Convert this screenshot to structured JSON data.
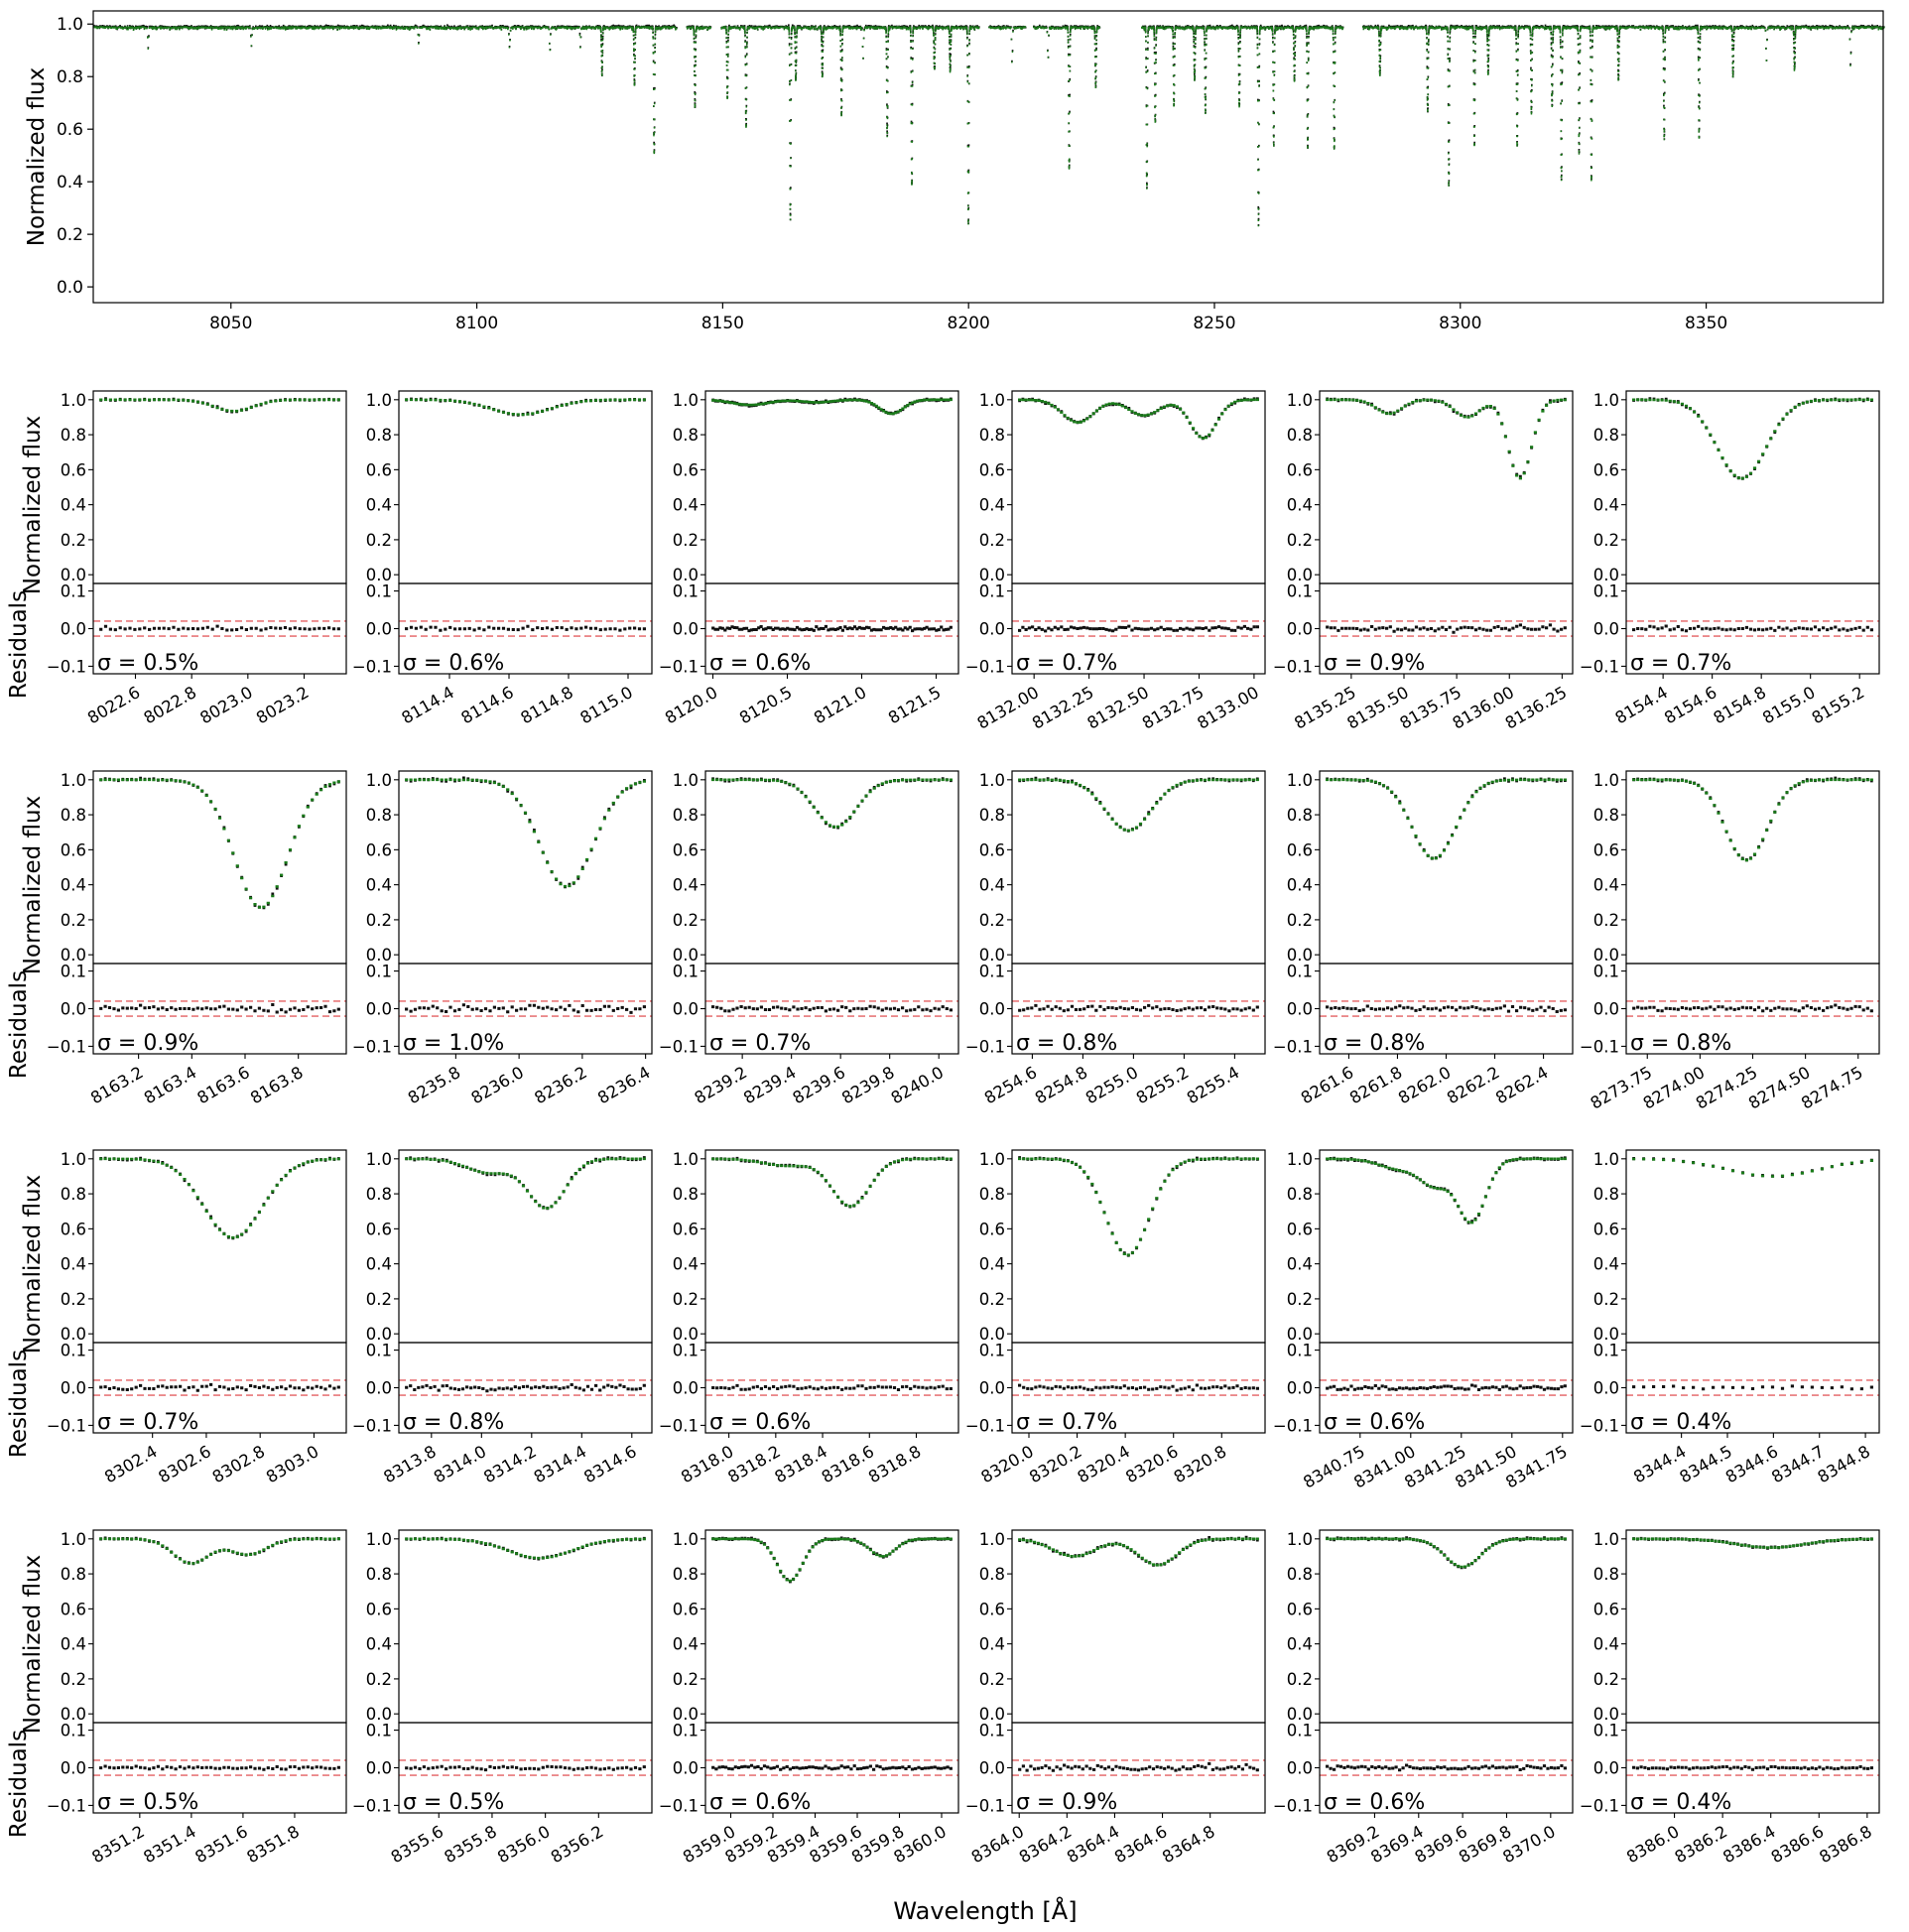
{
  "figure": {
    "xlabel": "Wavelength [Å]"
  },
  "chart_data": {
    "type": "scatter",
    "overview": {
      "ylabel": "Normalized flux",
      "xlim": [
        8022,
        8386
      ],
      "ylim": [
        -0.06,
        1.05
      ],
      "xticks": [
        8050,
        8100,
        8150,
        8200,
        8250,
        8300,
        8350
      ],
      "yticks": [
        0.0,
        0.2,
        0.4,
        0.6,
        0.8,
        1.0
      ],
      "gaps": [
        [
          8140.5,
          8142.5
        ],
        [
          8147.5,
          8149.5
        ],
        [
          8202,
          8204
        ],
        [
          8211.5,
          8213.0
        ],
        [
          8226.5,
          8235.0
        ],
        [
          8276.0,
          8280.0
        ]
      ],
      "lines": [
        [
          8135.9,
          0.48
        ],
        [
          8163.6,
          0.73
        ],
        [
          8236.1,
          0.61
        ],
        [
          8258.8,
          0.75
        ],
        [
          8188.3,
          0.6
        ],
        [
          8199.8,
          0.75
        ],
        [
          8220.3,
          0.54
        ],
        [
          8297.5,
          0.6
        ],
        [
          8320.4,
          0.58
        ],
        [
          8326.5,
          0.58
        ],
        [
          8324.0,
          0.48
        ],
        [
          8293.2,
          0.32
        ],
        [
          8311.4,
          0.45
        ],
        [
          8348.4,
          0.42
        ],
        [
          8183.3,
          0.41
        ],
        [
          8268.8,
          0.46
        ],
        [
          8237.8,
          0.36
        ],
        [
          8174.0,
          0.33
        ],
        [
          8248.0,
          0.32
        ],
        [
          8154.6,
          0.38
        ],
        [
          8125.3,
          0.18
        ],
        [
          8131.9,
          0.22
        ],
        [
          8144.2,
          0.3
        ],
        [
          8164.7,
          0.2
        ],
        [
          8196.1,
          0.17
        ],
        [
          8208.7,
          0.14
        ],
        [
          8225.7,
          0.23
        ],
        [
          8241.6,
          0.3
        ],
        [
          8245.8,
          0.2
        ],
        [
          8254.9,
          0.3
        ],
        [
          8261.9,
          0.45
        ],
        [
          8266.1,
          0.2
        ],
        [
          8274.2,
          0.46
        ],
        [
          8283.5,
          0.18
        ],
        [
          8302.7,
          0.45
        ],
        [
          8305.5,
          0.18
        ],
        [
          8314.3,
          0.33
        ],
        [
          8318.5,
          0.3
        ],
        [
          8332.0,
          0.2
        ],
        [
          8341.3,
          0.42
        ],
        [
          8355.3,
          0.18
        ],
        [
          8362.1,
          0.13
        ],
        [
          8367.8,
          0.16
        ],
        [
          8379.2,
          0.15
        ],
        [
          8033.0,
          0.08
        ],
        [
          8054.0,
          0.07
        ],
        [
          8088.0,
          0.06
        ],
        [
          8106.5,
          0.08
        ],
        [
          8114.7,
          0.09
        ],
        [
          8120.9,
          0.07
        ],
        [
          8150.8,
          0.27
        ],
        [
          8170.1,
          0.19
        ],
        [
          8178.4,
          0.12
        ],
        [
          8192.9,
          0.16
        ],
        [
          8216.0,
          0.12
        ],
        [
          8229.0,
          0.12
        ]
      ]
    },
    "panels": [
      {
        "xlim": [
          8022.45,
          8023.35
        ],
        "xticks": [
          "8022.6",
          "8022.8",
          "8023.0",
          "8023.2"
        ],
        "lines": [
          [
            8022.95,
            0.065,
            0.07
          ]
        ],
        "sigma": "σ = 0.5%",
        "sigma_value": 0.5,
        "n": 50
      },
      {
        "xlim": [
          8114.23,
          8115.08
        ],
        "xticks": [
          "8114.4",
          "8114.6",
          "8114.8",
          "8115.0"
        ],
        "lines": [
          [
            8114.64,
            0.085,
            0.1
          ]
        ],
        "sigma": "σ = 0.6%",
        "sigma_value": 0.6,
        "n": 50
      },
      {
        "xlim": [
          8119.95,
          8121.65
        ],
        "xticks": [
          "8120.0",
          "8120.5",
          "8121.0",
          "8121.5"
        ],
        "lines": [
          [
            8120.25,
            0.03,
            0.12
          ],
          [
            8121.2,
            0.08,
            0.08
          ],
          [
            8120.7,
            0.015,
            0.1
          ]
        ],
        "sigma": "σ = 0.6%",
        "sigma_value": 0.6,
        "n": 100
      },
      {
        "xlim": [
          8131.9,
          8133.05
        ],
        "xticks": [
          "8132.00",
          "8132.25",
          "8132.50",
          "8132.75",
          "8133.00"
        ],
        "lines": [
          [
            8132.2,
            0.13,
            0.07
          ],
          [
            8132.5,
            0.09,
            0.07
          ],
          [
            8132.77,
            0.22,
            0.06
          ]
        ],
        "sigma": "σ = 0.7%",
        "sigma_value": 0.7,
        "n": 75
      },
      {
        "xlim": [
          8135.1,
          8136.3
        ],
        "xticks": [
          "8135.25",
          "8135.50",
          "8135.75",
          "8136.00",
          "8136.25"
        ],
        "lines": [
          [
            8135.43,
            0.08,
            0.06
          ],
          [
            8135.8,
            0.1,
            0.06
          ],
          [
            8136.05,
            0.45,
            0.055
          ]
        ],
        "sigma": "σ = 0.9%",
        "sigma_value": 0.9,
        "n": 65
      },
      {
        "xlim": [
          8154.25,
          8155.28
        ],
        "xticks": [
          "8154.4",
          "8154.6",
          "8154.8",
          "8155.0",
          "8155.2"
        ],
        "lines": [
          [
            8154.72,
            0.45,
            0.1
          ]
        ],
        "sigma": "σ = 0.7%",
        "sigma_value": 0.7,
        "n": 60
      },
      {
        "xlim": [
          8163.03,
          8163.98
        ],
        "xticks": [
          "8163.2",
          "8163.4",
          "8163.6",
          "8163.8"
        ],
        "lines": [
          [
            8163.66,
            0.73,
            0.1
          ]
        ],
        "sigma": "σ = 0.9%",
        "sigma_value": 0.9,
        "n": 55
      },
      {
        "xlim": [
          8235.62,
          8236.42
        ],
        "xticks": [
          "8235.8",
          "8236.0",
          "8236.2",
          "8236.4"
        ],
        "lines": [
          [
            8236.15,
            0.61,
            0.085
          ]
        ],
        "sigma": "σ = 1.0%",
        "sigma_value": 1.0,
        "n": 55
      },
      {
        "xlim": [
          8239.05,
          8240.08
        ],
        "xticks": [
          "8239.2",
          "8239.4",
          "8239.6",
          "8239.8",
          "8240.0"
        ],
        "lines": [
          [
            8239.58,
            0.27,
            0.085
          ]
        ],
        "sigma": "σ = 0.7%",
        "sigma_value": 0.7,
        "n": 60
      },
      {
        "xlim": [
          8254.52,
          8255.52
        ],
        "xticks": [
          "8254.6",
          "8254.8",
          "8255.0",
          "8255.2",
          "8255.4"
        ],
        "lines": [
          [
            8254.98,
            0.29,
            0.09
          ]
        ],
        "sigma": "σ = 0.8%",
        "sigma_value": 0.8,
        "n": 60
      },
      {
        "xlim": [
          8261.48,
          8262.52
        ],
        "xticks": [
          "8261.6",
          "8261.8",
          "8262.0",
          "8262.2",
          "8262.4"
        ],
        "lines": [
          [
            8261.95,
            0.45,
            0.09
          ]
        ],
        "sigma": "σ = 0.8%",
        "sigma_value": 0.8,
        "n": 60
      },
      {
        "xlim": [
          8273.65,
          8274.85
        ],
        "xticks": [
          "8273.75",
          "8274.00",
          "8274.25",
          "8274.50",
          "8274.75"
        ],
        "lines": [
          [
            8274.22,
            0.46,
            0.1
          ]
        ],
        "sigma": "σ = 0.8%",
        "sigma_value": 0.8,
        "n": 60
      },
      {
        "xlim": [
          8302.18,
          8303.12
        ],
        "xticks": [
          "8302.4",
          "8302.6",
          "8302.8",
          "8303.0"
        ],
        "lines": [
          [
            8302.7,
            0.45,
            0.11
          ]
        ],
        "sigma": "σ = 0.7%",
        "sigma_value": 0.7,
        "n": 55
      },
      {
        "xlim": [
          8313.67,
          8314.68
        ],
        "xticks": [
          "8313.8",
          "8314.0",
          "8314.2",
          "8314.4",
          "8314.6"
        ],
        "lines": [
          [
            8314.03,
            0.08,
            0.09
          ],
          [
            8314.26,
            0.28,
            0.075
          ]
        ],
        "sigma": "σ = 0.8%",
        "sigma_value": 0.8,
        "n": 60
      },
      {
        "xlim": [
          8317.9,
          8318.98
        ],
        "xticks": [
          "8318.0",
          "8318.2",
          "8318.4",
          "8318.6",
          "8318.8"
        ],
        "lines": [
          [
            8318.25,
            0.04,
            0.1
          ],
          [
            8318.52,
            0.27,
            0.08
          ]
        ],
        "sigma": "σ = 0.6%",
        "sigma_value": 0.6,
        "n": 60
      },
      {
        "xlim": [
          8319.93,
          8320.98
        ],
        "xticks": [
          "8320.0",
          "8320.2",
          "8320.4",
          "8320.6",
          "8320.8"
        ],
        "lines": [
          [
            8320.41,
            0.55,
            0.09
          ]
        ],
        "sigma": "σ = 0.7%",
        "sigma_value": 0.7,
        "n": 60
      },
      {
        "xlim": [
          8340.55,
          8341.8
        ],
        "xticks": [
          "8340.75",
          "8341.00",
          "8341.25",
          "8341.50",
          "8341.75"
        ],
        "lines": [
          [
            8340.95,
            0.06,
            0.1
          ],
          [
            8341.12,
            0.14,
            0.07
          ],
          [
            8341.3,
            0.36,
            0.07
          ]
        ],
        "sigma": "σ = 0.6%",
        "sigma_value": 0.6,
        "n": 70
      },
      {
        "xlim": [
          8344.28,
          8344.83
        ],
        "xticks": [
          "8344.4",
          "8344.5",
          "8344.6",
          "8344.7",
          "8344.8"
        ],
        "lines": [
          [
            8344.6,
            0.1,
            0.1
          ]
        ],
        "sigma": "σ = 0.4%",
        "sigma_value": 0.4,
        "n": 25
      },
      {
        "xlim": [
          8351.02,
          8352.0
        ],
        "xticks": [
          "8351.2",
          "8351.4",
          "8351.6",
          "8351.8"
        ],
        "lines": [
          [
            8351.4,
            0.14,
            0.07
          ],
          [
            8351.62,
            0.09,
            0.07
          ]
        ],
        "sigma": "σ = 0.5%",
        "sigma_value": 0.5,
        "n": 55
      },
      {
        "xlim": [
          8355.45,
          8356.4
        ],
        "xticks": [
          "8355.6",
          "8355.8",
          "8356.0",
          "8356.2"
        ],
        "lines": [
          [
            8355.98,
            0.11,
            0.12
          ]
        ],
        "sigma": "σ = 0.5%",
        "sigma_value": 0.5,
        "n": 55
      },
      {
        "xlim": [
          8358.88,
          8360.08
        ],
        "xticks": [
          "8359.0",
          "8359.2",
          "8359.4",
          "8359.6",
          "8359.8",
          "8360.0"
        ],
        "lines": [
          [
            8359.28,
            0.24,
            0.06
          ],
          [
            8359.72,
            0.1,
            0.06
          ]
        ],
        "sigma": "σ = 0.6%",
        "sigma_value": 0.6,
        "n": 75
      },
      {
        "xlim": [
          8363.97,
          8365.03
        ],
        "xticks": [
          "8364.0",
          "8364.2",
          "8364.4",
          "8364.6",
          "8364.8"
        ],
        "lines": [
          [
            8364.23,
            0.1,
            0.09
          ],
          [
            8364.58,
            0.15,
            0.08
          ]
        ],
        "sigma": "σ = 0.9%",
        "sigma_value": 0.9,
        "n": 65
      },
      {
        "xlim": [
          8368.95,
          8370.1
        ],
        "xticks": [
          "8369.2",
          "8369.4",
          "8369.6",
          "8369.8",
          "8370.0"
        ],
        "lines": [
          [
            8369.6,
            0.16,
            0.08
          ]
        ],
        "sigma": "σ = 0.6%",
        "sigma_value": 0.6,
        "n": 70
      },
      {
        "xlim": [
          8385.8,
          8386.85
        ],
        "xticks": [
          "8386.0",
          "8386.2",
          "8386.4",
          "8386.6",
          "8386.8"
        ],
        "lines": [
          [
            8386.4,
            0.05,
            0.14
          ]
        ],
        "sigma": "σ = 0.4%",
        "sigma_value": 0.4,
        "n": 65
      }
    ],
    "panel_flux_ylim": [
      -0.05,
      1.05
    ],
    "panel_flux_yticks": [
      "0.0",
      "0.2",
      "0.4",
      "0.6",
      "0.8",
      "1.0"
    ],
    "panel_resid_ylim": [
      -0.12,
      0.12
    ],
    "panel_resid_yticks": [
      "0.1",
      "0.0",
      "−0.1"
    ],
    "sigma_band": [
      -0.02,
      0.02
    ],
    "flux_ylabel": "Normalized flux",
    "resid_ylabel": "Residuals",
    "colors": {
      "model": "#1a7a1a",
      "data": "#111111",
      "band": "#e8787a",
      "axis": "#000000"
    }
  }
}
